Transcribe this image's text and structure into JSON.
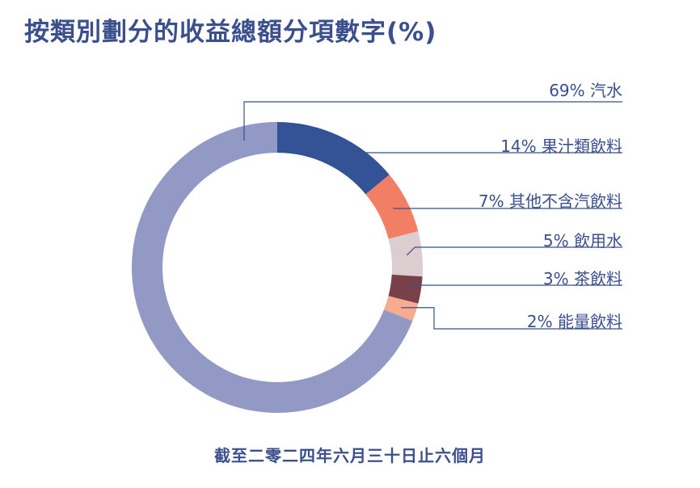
{
  "title": "按類別劃分的收益總額分項數字(%)",
  "footnote": "截至二零二四年六月三十日止六個月",
  "chart_data": {
    "type": "pie",
    "title": "按類別劃分的收益總額分項數字(%)",
    "categories": [
      "汽水",
      "果汁類飲料",
      "其他不含汽飲料",
      "飲用水",
      "茶飲料",
      "能量飲料"
    ],
    "values": [
      69,
      14,
      7,
      5,
      3,
      2
    ],
    "labels": [
      "69% 汽水",
      "14% 果汁類飲料",
      "7% 其他不含汽飲料",
      "5% 飲用水",
      "3% 茶飲料",
      "2% 能量飲料"
    ],
    "colors": [
      "#9199c4",
      "#335396",
      "#f27e64",
      "#dbcdd0",
      "#7a4049",
      "#f7ab8f"
    ],
    "donut": true,
    "legend": "right-callouts"
  }
}
